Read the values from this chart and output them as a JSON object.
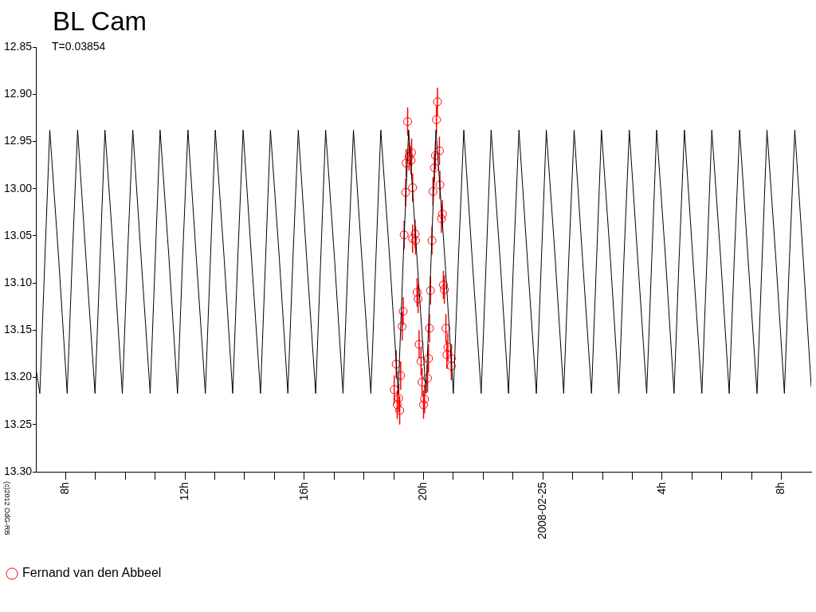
{
  "chart_data": {
    "type": "scatter",
    "title": "BL Cam",
    "subtitle": "T=0.03854",
    "xlim": [
      "2008-02-24T07:00",
      "2008-02-25T09:00"
    ],
    "xticks": [
      {
        "value": "2008-02-24T08:00",
        "label": "8h"
      },
      {
        "value": "2008-02-24T09:00",
        "label": null
      },
      {
        "value": "2008-02-24T10:00",
        "label": null
      },
      {
        "value": "2008-02-24T11:00",
        "label": null
      },
      {
        "value": "2008-02-24T12:00",
        "label": "12h"
      },
      {
        "value": "2008-02-24T13:00",
        "label": null
      },
      {
        "value": "2008-02-24T14:00",
        "label": null
      },
      {
        "value": "2008-02-24T15:00",
        "label": null
      },
      {
        "value": "2008-02-24T16:00",
        "label": "16h"
      },
      {
        "value": "2008-02-24T17:00",
        "label": null
      },
      {
        "value": "2008-02-24T18:00",
        "label": null
      },
      {
        "value": "2008-02-24T19:00",
        "label": null
      },
      {
        "value": "2008-02-24T20:00",
        "label": "20h"
      },
      {
        "value": "2008-02-24T21:00",
        "label": null
      },
      {
        "value": "2008-02-24T22:00",
        "label": null
      },
      {
        "value": "2008-02-24T23:00",
        "label": null
      },
      {
        "value": "2008-02-25T00:00",
        "label": "2008-02-25"
      },
      {
        "value": "2008-02-25T01:00",
        "label": null
      },
      {
        "value": "2008-02-25T02:00",
        "label": null
      },
      {
        "value": "2008-02-25T03:00",
        "label": null
      },
      {
        "value": "2008-02-25T04:00",
        "label": "4h"
      },
      {
        "value": "2008-02-25T05:00",
        "label": null
      },
      {
        "value": "2008-02-25T06:00",
        "label": null
      },
      {
        "value": "2008-02-25T07:00",
        "label": null
      },
      {
        "value": "2008-02-25T08:00",
        "label": "8h"
      }
    ],
    "ylim": [
      13.3,
      12.85
    ],
    "yticks": [
      12.85,
      {
        "value": 12.9,
        "label": "12.90"
      },
      12.95,
      {
        "value": 13,
        "label": "13.00"
      },
      13.05,
      {
        "value": 13.1,
        "label": "13.10"
      },
      13.15,
      {
        "value": 13.2,
        "label": "13.20"
      },
      13.25,
      {
        "value": 13.3,
        "label": "13.30"
      }
    ],
    "legend": "bottom left",
    "annotations": [
      "(c)2012 OdG-RB"
    ],
    "series": [
      {
        "type": "line",
        "color": "#000000",
        "marker": "none",
        "x": [
          "2008-02-24T07:00",
          "2008-02-24T07:08",
          "2008-02-24T07:18",
          "2008-02-24T07:28",
          "2008-02-24T07:46",
          "2008-02-24T08:03",
          "2008-02-24T08:13",
          "2008-02-24T08:24",
          "2008-02-24T08:41",
          "2008-02-24T08:59",
          "2008-02-24T09:09",
          "2008-02-24T09:19",
          "2008-02-24T09:37",
          "2008-02-24T09:54",
          "2008-02-24T10:04",
          "2008-02-24T10:15",
          "2008-02-24T10:32",
          "2008-02-24T10:50",
          "2008-02-24T11:00",
          "2008-02-24T11:10",
          "2008-02-24T11:28",
          "2008-02-24T11:45",
          "2008-02-24T11:55",
          "2008-02-24T12:06",
          "2008-02-24T12:23",
          "2008-02-24T12:41",
          "2008-02-24T12:51",
          "2008-02-24T13:01",
          "2008-02-24T13:19",
          "2008-02-24T13:36",
          "2008-02-24T13:46",
          "2008-02-24T13:57",
          "2008-02-24T14:14",
          "2008-02-24T14:32",
          "2008-02-24T14:42",
          "2008-02-24T14:52",
          "2008-02-24T15:10",
          "2008-02-24T15:27",
          "2008-02-24T15:37",
          "2008-02-24T15:48",
          "2008-02-24T16:05",
          "2008-02-24T16:23",
          "2008-02-24T16:33",
          "2008-02-24T16:43",
          "2008-02-24T17:01",
          "2008-02-24T17:18",
          "2008-02-24T17:28",
          "2008-02-24T17:39",
          "2008-02-24T17:56",
          "2008-02-24T18:14",
          "2008-02-24T18:24",
          "2008-02-24T18:34",
          "2008-02-24T18:52",
          "2008-02-24T19:09",
          "2008-02-24T19:19",
          "2008-02-24T19:30",
          "2008-02-24T19:47",
          "2008-02-24T20:05",
          "2008-02-24T20:15",
          "2008-02-24T20:25",
          "2008-02-24T20:43",
          "2008-02-24T21:00",
          "2008-02-24T21:10",
          "2008-02-24T21:21",
          "2008-02-24T21:38",
          "2008-02-24T21:56",
          "2008-02-24T22:06",
          "2008-02-24T22:16",
          "2008-02-24T22:34",
          "2008-02-24T22:51",
          "2008-02-24T23:01",
          "2008-02-24T23:12",
          "2008-02-24T23:29",
          "2008-02-24T23:47",
          "2008-02-24T23:57",
          "2008-02-25T00:07",
          "2008-02-25T00:25",
          "2008-02-25T00:42",
          "2008-02-25T00:52",
          "2008-02-25T01:03",
          "2008-02-25T01:20",
          "2008-02-25T01:38",
          "2008-02-25T01:48",
          "2008-02-25T01:58",
          "2008-02-25T02:16",
          "2008-02-25T02:33",
          "2008-02-25T02:43",
          "2008-02-25T02:54",
          "2008-02-25T03:11",
          "2008-02-25T03:29",
          "2008-02-25T03:39",
          "2008-02-25T03:49",
          "2008-02-25T04:07",
          "2008-02-25T04:24",
          "2008-02-25T04:34",
          "2008-02-25T04:45",
          "2008-02-25T05:02",
          "2008-02-25T05:20",
          "2008-02-25T05:30",
          "2008-02-25T05:40",
          "2008-02-25T05:58",
          "2008-02-25T06:15",
          "2008-02-25T06:25",
          "2008-02-25T06:36",
          "2008-02-25T06:53",
          "2008-02-25T07:11",
          "2008-02-25T07:21",
          "2008-02-25T07:31",
          "2008-02-25T07:49",
          "2008-02-25T08:06",
          "2008-02-25T08:16",
          "2008-02-25T08:27",
          "2008-02-25T08:44",
          "2008-02-25T09:00"
        ],
        "values": [
          13.19,
          13.217,
          13.077,
          12.938,
          13.075,
          13.217,
          13.077,
          12.938,
          13.075,
          13.217,
          13.077,
          12.938,
          13.075,
          13.217,
          13.077,
          12.938,
          13.075,
          13.217,
          13.077,
          12.938,
          13.075,
          13.217,
          13.077,
          12.938,
          13.075,
          13.217,
          13.077,
          12.938,
          13.075,
          13.217,
          13.077,
          12.938,
          13.075,
          13.217,
          13.077,
          12.938,
          13.075,
          13.217,
          13.077,
          12.938,
          13.075,
          13.217,
          13.077,
          12.938,
          13.075,
          13.217,
          13.077,
          12.938,
          13.075,
          13.217,
          13.077,
          12.938,
          13.075,
          13.217,
          13.077,
          12.938,
          13.075,
          13.217,
          13.077,
          12.938,
          13.075,
          13.217,
          13.077,
          12.938,
          13.075,
          13.217,
          13.077,
          12.938,
          13.075,
          13.217,
          13.077,
          12.938,
          13.075,
          13.217,
          13.077,
          12.938,
          13.075,
          13.217,
          13.077,
          12.938,
          13.075,
          13.217,
          13.077,
          12.938,
          13.075,
          13.217,
          13.077,
          12.938,
          13.075,
          13.217,
          13.077,
          12.938,
          13.075,
          13.217,
          13.077,
          12.938,
          13.075,
          13.217,
          13.077,
          12.938,
          13.075,
          13.217,
          13.077,
          12.938,
          13.075,
          13.217,
          13.077,
          12.938,
          13.075,
          13.217,
          13.077,
          12.938,
          13.075,
          13.21
        ]
      },
      {
        "type": "scatter",
        "name": "Fernand van den Abbeel",
        "color": "#ff0000",
        "marker": "circle",
        "x": [
          "2008-02-24T19:28",
          "2008-02-24T20:28",
          "2008-02-24T20:26",
          "2008-02-24T19:36",
          "2008-02-24T19:31",
          "2008-02-24T19:35",
          "2008-02-24T19:25",
          "2008-02-24T20:32",
          "2008-02-24T20:24",
          "2008-02-24T20:22",
          "2008-02-24T19:38",
          "2008-02-24T19:24",
          "2008-02-24T20:33",
          "2008-02-24T20:19",
          "2008-02-24T20:38",
          "2008-02-24T20:36",
          "2008-02-24T19:21",
          "2008-02-24T19:43",
          "2008-02-24T19:38",
          "2008-02-24T19:44",
          "2008-02-24T20:17",
          "2008-02-24T19:47",
          "2008-02-24T19:49",
          "2008-02-24T20:14",
          "2008-02-24T20:40",
          "2008-02-24T20:42",
          "2008-02-24T19:19",
          "2008-02-24T19:17",
          "2008-02-24T20:12",
          "2008-02-24T20:45",
          "2008-02-24T19:51",
          "2008-02-24T20:49",
          "2008-02-24T20:47",
          "2008-02-24T20:56",
          "2008-02-24T20:56",
          "2008-02-24T19:05",
          "2008-02-24T19:14",
          "2008-02-24T19:55",
          "2008-02-24T20:10",
          "2008-02-24T20:08",
          "2008-02-24T19:57",
          "2008-02-24T19:01",
          "2008-02-24T19:10",
          "2008-02-24T19:07",
          "2008-02-24T19:12",
          "2008-02-24T20:02",
          "2008-02-24T20:00"
        ],
        "values": [
          12.929,
          12.908,
          12.927,
          12.962,
          12.966,
          12.97,
          12.973,
          12.96,
          12.965,
          12.978,
          12.999,
          13.004,
          12.996,
          13.003,
          13.027,
          13.032,
          13.049,
          13.048,
          13.053,
          13.055,
          13.055,
          13.11,
          13.117,
          13.108,
          13.102,
          13.107,
          13.13,
          13.146,
          13.148,
          13.148,
          13.165,
          13.168,
          13.176,
          13.18,
          13.188,
          13.186,
          13.198,
          13.183,
          13.18,
          13.201,
          13.205,
          13.213,
          13.222,
          13.229,
          13.235,
          13.223,
          13.229
        ],
        "errors": [
          0.015,
          0.015,
          0.015,
          0.015,
          0.015,
          0.015,
          0.015,
          0.015,
          0.015,
          0.015,
          0.015,
          0.015,
          0.015,
          0.015,
          0.015,
          0.015,
          0.015,
          0.015,
          0.015,
          0.015,
          0.015,
          0.015,
          0.015,
          0.015,
          0.015,
          0.015,
          0.015,
          0.015,
          0.015,
          0.015,
          0.015,
          0.015,
          0.015,
          0.015,
          0.015,
          0.015,
          0.015,
          0.015,
          0.015,
          0.015,
          0.015,
          0.015,
          0.015,
          0.015,
          0.015,
          0.015,
          0.015
        ]
      }
    ]
  }
}
